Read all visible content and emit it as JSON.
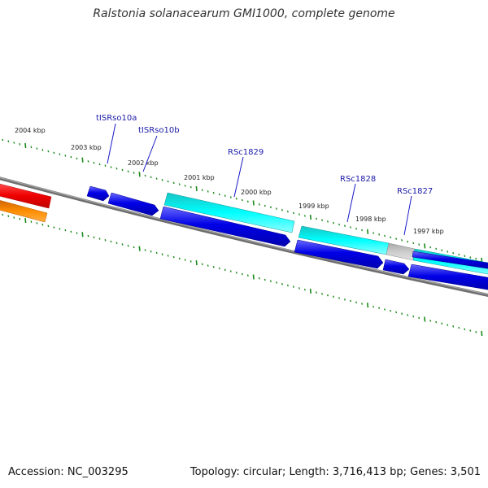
{
  "title": "Ralstonia solanacearum GMI1000, complete genome",
  "footer": {
    "accession": "Accession: NC_003295",
    "summary": "Topology: circular; Length: 3,716,413 bp; Genes: 3,501"
  },
  "colors": {
    "backbone": "#808080",
    "tick": "#1c8a1c",
    "cds": "#0000e0",
    "cds_light": "#00e6e6",
    "rna": "#e00000",
    "orange": "#f08000",
    "gray_feature": "#c0c0c0",
    "label_line": "#0000cc"
  },
  "scale_labels": [
    "2004 kbp",
    "2003 kbp",
    "2002 kbp",
    "2001 kbp",
    "2000 kbp",
    "1999 kbp",
    "1998 kbp",
    "1997 kbp"
  ],
  "gene_labels": [
    "tISRso10a",
    "tISRso10b",
    "RSc1829",
    "RSc1828",
    "RSc1827"
  ]
}
